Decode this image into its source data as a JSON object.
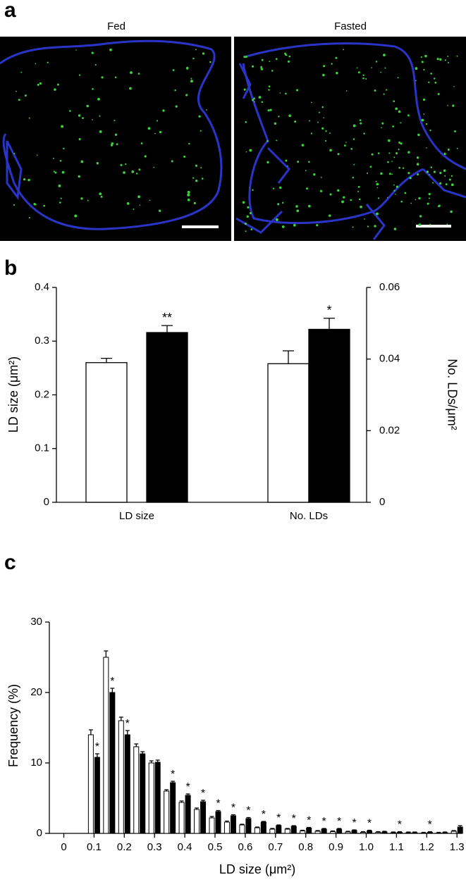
{
  "panel_a": {
    "label": "a",
    "titles": [
      "Fed",
      "Fasted"
    ]
  },
  "chart_data": [
    {
      "type": "bar",
      "panel_label": "b",
      "categories": [
        "LD size",
        "No. LDs"
      ],
      "y_label": "LD size (μm²)",
      "y2_label": "No. LDs/μm²",
      "ylim": [
        0,
        0.4
      ],
      "yticks": [
        0,
        0.1,
        0.2,
        0.3,
        0.4
      ],
      "y2lim": [
        0,
        0.06
      ],
      "y2ticks": [
        0,
        0.02,
        0.04,
        0.06
      ],
      "series": [
        {
          "color": "#ffffff",
          "values": [
            0.26,
            null
          ],
          "errors": [
            0.008,
            null
          ],
          "labels": [
            null,
            null
          ]
        },
        {
          "color": "#000000",
          "values": [
            0.316,
            null
          ],
          "errors": [
            0.013,
            null
          ],
          "labels": [
            "**",
            null
          ]
        },
        {
          "color": "#ffffff",
          "axis": "y2",
          "values": [
            null,
            0.0387
          ],
          "errors": [
            null,
            0.0036
          ],
          "labels": [
            null,
            null
          ]
        },
        {
          "color": "#000000",
          "axis": "y2",
          "values": [
            null,
            0.0483
          ],
          "errors": [
            null,
            0.0031
          ],
          "labels": [
            null,
            "*"
          ]
        }
      ]
    },
    {
      "type": "histbar",
      "panel_label": "c",
      "x_label": "LD size (μm²)",
      "y_label": "Frequency (%)",
      "x": [
        0.1,
        0.15,
        0.2,
        0.25,
        0.3,
        0.35,
        0.4,
        0.45,
        0.5,
        0.55,
        0.6,
        0.65,
        0.7,
        0.75,
        0.8,
        0.85,
        0.9,
        0.95,
        1.0,
        1.05,
        1.1,
        1.15,
        1.2,
        1.25,
        1.3
      ],
      "xlim": [
        -0.045,
        1.32
      ],
      "xticks": [
        0,
        0.1,
        0.2,
        0.3,
        0.4,
        0.5,
        0.6,
        0.7,
        0.8,
        0.9,
        {
          "value": 1,
          "label": "1.0"
        },
        1.1,
        1.2,
        1.3
      ],
      "ylim": [
        0,
        30
      ],
      "yticks": [
        0,
        10,
        20,
        30
      ],
      "series": [
        {
          "color": "#ffffff",
          "values": [
            14,
            25,
            16,
            12.3,
            10,
            6,
            4.4,
            3.4,
            2.2,
            1.6,
            1.2,
            0.8,
            0.6,
            0.6,
            0.35,
            0.3,
            0.25,
            0.2,
            0.15,
            0.15,
            0.1,
            0.1,
            0.05,
            0.05,
            0.3
          ],
          "errors": [
            0.7,
            0.9,
            0.5,
            0.4,
            0.3,
            0.2,
            0.2,
            0.2,
            0.2,
            0.15,
            0.1,
            0.1,
            0.1,
            0.1,
            0.1,
            0.1,
            0.1,
            0.1,
            0.1,
            0.1,
            0.1,
            0.1,
            0.1,
            0.1,
            0.1
          ],
          "labels": [
            null,
            null,
            null,
            null,
            null,
            null,
            null,
            null,
            null,
            null,
            null,
            null,
            null,
            null,
            null,
            null,
            null,
            null,
            null,
            null,
            null,
            null,
            null,
            null,
            null
          ]
        },
        {
          "color": "#000000",
          "values": [
            10.8,
            20,
            14,
            11.3,
            10.1,
            7.2,
            5.4,
            4.5,
            3.1,
            2.5,
            2.1,
            1.6,
            1.1,
            1.0,
            0.75,
            0.6,
            0.6,
            0.4,
            0.35,
            0.2,
            0.15,
            0.1,
            0.15,
            0.1,
            0.9
          ],
          "errors": [
            0.5,
            0.6,
            0.6,
            0.3,
            0.3,
            0.2,
            0.2,
            0.2,
            0.15,
            0.15,
            0.15,
            0.1,
            0.1,
            0.1,
            0.1,
            0.1,
            0.1,
            0.1,
            0.1,
            0.1,
            0.1,
            0.1,
            0.1,
            0.1,
            0.2
          ],
          "labels": [
            "*",
            "*",
            "*",
            null,
            null,
            "*",
            "*",
            "*",
            "*",
            "*",
            "*",
            "*",
            "*",
            "*",
            "*",
            "*",
            "*",
            "*",
            "*",
            null,
            "*",
            null,
            "*",
            null,
            null
          ]
        }
      ]
    }
  ]
}
